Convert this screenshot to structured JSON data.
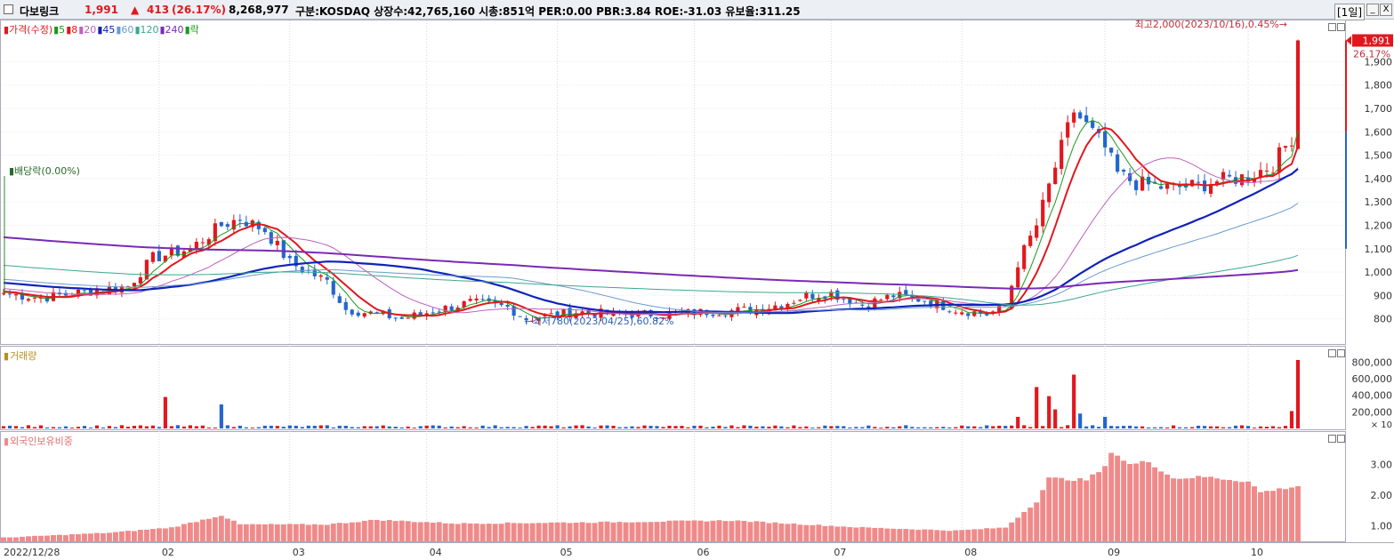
{
  "header": {
    "stock_name": "다보링크",
    "price": "1,991",
    "change_symbol": "▲",
    "change": "413",
    "change_pct": "(26.17%)",
    "volume": "8,268,977",
    "info": "구분:KOSDAQ 상장수:42,765,160 시총:851억 PER:0.00 PBR:3.84 ROE:-31.03 유보율:311.25",
    "period": "[1일]",
    "btn_min": "_",
    "btn_close": "X"
  },
  "colors": {
    "up": "#e0181e",
    "down": "#2266cc",
    "ma5": "#1a9a1a",
    "ma8": "#e0181e",
    "ma20": "#c060c0",
    "ma45": "#1022b8",
    "ma60": "#6a9ad0",
    "ma120": "#3aa88e",
    "ma240": "#7a2ab4",
    "foreign_bar": "#f08a8a"
  },
  "price_panel": {
    "legend": [
      {
        "label": "가격(수정)",
        "color": "#e0181e"
      },
      {
        "label": "5",
        "color": "#1a9a1a"
      },
      {
        "label": "8",
        "color": "#e0181e"
      },
      {
        "label": "20",
        "color": "#c060c0"
      },
      {
        "label": "45",
        "color": "#1022b8"
      },
      {
        "label": "60",
        "color": "#6a9ad0"
      },
      {
        "label": "120",
        "color": "#3aa88e"
      },
      {
        "label": "240",
        "color": "#7a2ab4"
      },
      {
        "label": "락",
        "color": "#1a9a1a"
      }
    ],
    "annotation_high": "최고2,000(2023/10/16),0.45%",
    "annotation_low": "최저780(2023/04/25),60.82%",
    "annotation_dividend": "배당락(0.00%)",
    "current_price_tag": "1,991",
    "current_change_tag": "26.17%"
  },
  "volume_panel": {
    "title": "거래량",
    "scale_note": "× 10"
  },
  "foreign_panel": {
    "title": "외국인보유비중"
  },
  "chart_data": [
    {
      "type": "candlestick",
      "title": "",
      "ylim": [
        700,
        2050
      ],
      "yticks": [
        800,
        900,
        1000,
        1100,
        1200,
        1300,
        1400,
        1500,
        1600,
        1700,
        1800,
        1900
      ],
      "ytick_labels": [
        "800",
        "900",
        "1,000",
        "1,100",
        "1,200",
        "1,300",
        "1,400",
        "1,500",
        "1,600",
        "1,700",
        "1,800",
        "1,900"
      ],
      "x_labels": [
        "2022/12/28",
        "02",
        "03",
        "04",
        "05",
        "06",
        "07",
        "08",
        "09",
        "10"
      ],
      "x_label_dates": [
        "2022-12-28",
        "2023-02-01",
        "2023-03-02",
        "2023-04-03",
        "2023-05-02",
        "2023-06-01",
        "2023-07-03",
        "2023-08-01",
        "2023-09-01",
        "2023-10-04"
      ],
      "first_date": "2022-12-28",
      "last_date": "2023-10-16",
      "close_keypoints": [
        [
          "2022-12-28",
          910
        ],
        [
          "2023-01-05",
          890
        ],
        [
          "2023-01-15",
          915
        ],
        [
          "2023-01-25",
          940
        ],
        [
          "2023-01-31",
          1060
        ],
        [
          "2023-02-08",
          1100
        ],
        [
          "2023-02-15",
          1200
        ],
        [
          "2023-02-20",
          1230
        ],
        [
          "2023-02-24",
          1180
        ],
        [
          "2023-03-02",
          1040
        ],
        [
          "2023-03-10",
          960
        ],
        [
          "2023-03-15",
          840
        ],
        [
          "2023-03-22",
          820
        ],
        [
          "2023-03-28",
          800
        ],
        [
          "2023-04-05",
          840
        ],
        [
          "2023-04-12",
          870
        ],
        [
          "2023-04-20",
          850
        ],
        [
          "2023-04-25",
          800
        ],
        [
          "2023-05-05",
          830
        ],
        [
          "2023-05-15",
          820
        ],
        [
          "2023-05-25",
          820
        ],
        [
          "2023-06-05",
          830
        ],
        [
          "2023-06-15",
          840
        ],
        [
          "2023-06-22",
          870
        ],
        [
          "2023-06-27",
          900
        ],
        [
          "2023-07-03",
          910
        ],
        [
          "2023-07-10",
          860
        ],
        [
          "2023-07-17",
          900
        ],
        [
          "2023-07-24",
          880
        ],
        [
          "2023-07-31",
          840
        ],
        [
          "2023-08-07",
          820
        ],
        [
          "2023-08-10",
          850
        ],
        [
          "2023-08-14",
          1040
        ],
        [
          "2023-08-17",
          1200
        ],
        [
          "2023-08-22",
          1450
        ],
        [
          "2023-08-25",
          1690
        ],
        [
          "2023-09-01",
          1530
        ],
        [
          "2023-09-05",
          1420
        ],
        [
          "2023-09-08",
          1380
        ],
        [
          "2023-09-15",
          1360
        ],
        [
          "2023-09-22",
          1370
        ],
        [
          "2023-09-27",
          1390
        ],
        [
          "2023-10-04",
          1410
        ],
        [
          "2023-10-10",
          1460
        ],
        [
          "2023-10-13",
          1578
        ],
        [
          "2023-10-16",
          1991
        ]
      ],
      "series": [
        {
          "name": "5",
          "period": 5
        },
        {
          "name": "8",
          "period": 8
        },
        {
          "name": "20",
          "period": 20
        },
        {
          "name": "45",
          "period": 45
        },
        {
          "name": "60",
          "period": 60
        },
        {
          "name": "120",
          "period": 120
        },
        {
          "name": "240",
          "period": 240
        }
      ],
      "high": {
        "value": 2000,
        "date": "2023-10-16"
      },
      "low": {
        "value": 780,
        "date": "2023-04-25"
      },
      "last_close": 1991
    },
    {
      "type": "bar",
      "name": "거래량",
      "yticks": [
        200000,
        400000,
        600000,
        800000
      ],
      "ytick_labels": [
        "200,000",
        "400,000",
        "600,000",
        "800,000"
      ],
      "ylim": [
        0,
        880000
      ],
      "spikes": [
        [
          "2023-02-02",
          380000
        ],
        [
          "2023-02-15",
          290000
        ],
        [
          "2023-08-14",
          140000
        ],
        [
          "2023-08-17",
          500000
        ],
        [
          "2023-08-21",
          390000
        ],
        [
          "2023-08-22",
          230000
        ],
        [
          "2023-08-25",
          650000
        ],
        [
          "2023-08-28",
          180000
        ],
        [
          "2023-09-01",
          140000
        ],
        [
          "2023-10-13",
          210000
        ],
        [
          "2023-10-16",
          826898
        ]
      ],
      "baseline_volume": 25000
    },
    {
      "type": "bar",
      "name": "외국인보유비중",
      "yticks": [
        1.0,
        2.0,
        3.0
      ],
      "ytick_labels": [
        "1.00",
        "2.00",
        "3.00"
      ],
      "ylim": [
        0.5,
        3.8
      ],
      "keypoints": [
        [
          "2022-12-28",
          0.62
        ],
        [
          "2023-01-20",
          0.78
        ],
        [
          "2023-02-03",
          0.95
        ],
        [
          "2023-02-15",
          1.35
        ],
        [
          "2023-02-20",
          1.05
        ],
        [
          "2023-03-10",
          1.05
        ],
        [
          "2023-03-22",
          1.2
        ],
        [
          "2023-04-10",
          1.08
        ],
        [
          "2023-05-10",
          1.12
        ],
        [
          "2023-06-10",
          1.18
        ],
        [
          "2023-07-10",
          0.95
        ],
        [
          "2023-07-31",
          0.85
        ],
        [
          "2023-08-10",
          0.95
        ],
        [
          "2023-08-17",
          1.8
        ],
        [
          "2023-08-21",
          2.55
        ],
        [
          "2023-08-29",
          2.5
        ],
        [
          "2023-09-01",
          2.9
        ],
        [
          "2023-09-04",
          3.45
        ],
        [
          "2023-09-07",
          3.0
        ],
        [
          "2023-09-12",
          3.1
        ],
        [
          "2023-09-18",
          2.55
        ],
        [
          "2023-09-25",
          2.6
        ],
        [
          "2023-10-04",
          2.45
        ],
        [
          "2023-10-06",
          2.1
        ],
        [
          "2023-10-16",
          2.3
        ]
      ]
    }
  ]
}
